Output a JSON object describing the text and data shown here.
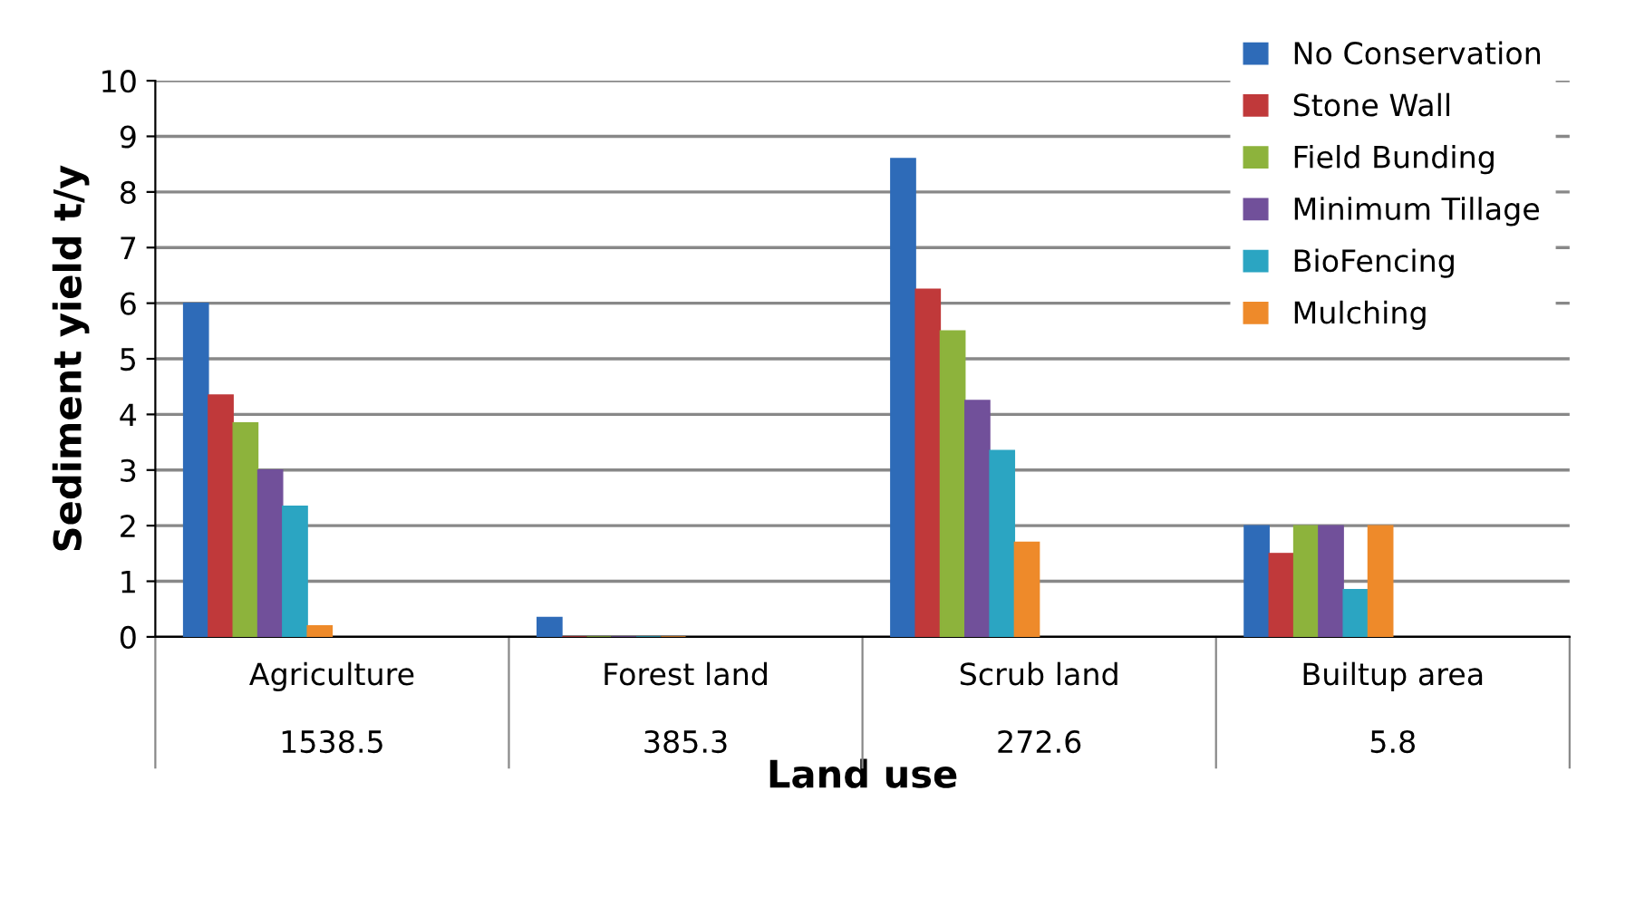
{
  "chart_data": {
    "type": "bar",
    "xlabel": "Land use",
    "ylabel": "Sediment yield t/y",
    "categories": [
      "Agriculture\n\n1538.5",
      "Forest land\n\n385.3",
      "Scrub land\n\n272.6",
      "Builtup area\n\n5.8"
    ],
    "series": [
      {
        "name": "No Conservation",
        "color": "#2e6bb8",
        "values": [
          6.0,
          0.35,
          8.6,
          2.0
        ]
      },
      {
        "name": "Stone Wall",
        "color": "#c0393a",
        "values": [
          4.35,
          0,
          6.25,
          1.5
        ]
      },
      {
        "name": "Field Bunding",
        "color": "#8db33c",
        "values": [
          3.85,
          0,
          5.5,
          2.0
        ]
      },
      {
        "name": "Minimum Tillage",
        "color": "#71509a",
        "values": [
          3.0,
          0,
          4.25,
          2.0
        ]
      },
      {
        "name": "BioFencing",
        "color": "#2ba5c2",
        "values": [
          2.35,
          0,
          3.35,
          0.85
        ]
      },
      {
        "name": "Mulching",
        "color": "#ee8a2a",
        "values": [
          0.2,
          0,
          1.7,
          2.0
        ]
      }
    ],
    "ylim": [
      0,
      10
    ],
    "yticks": [
      0,
      1,
      2,
      3,
      4,
      5,
      6,
      7,
      8,
      9,
      10
    ],
    "grid": "y",
    "legend": "top right"
  }
}
